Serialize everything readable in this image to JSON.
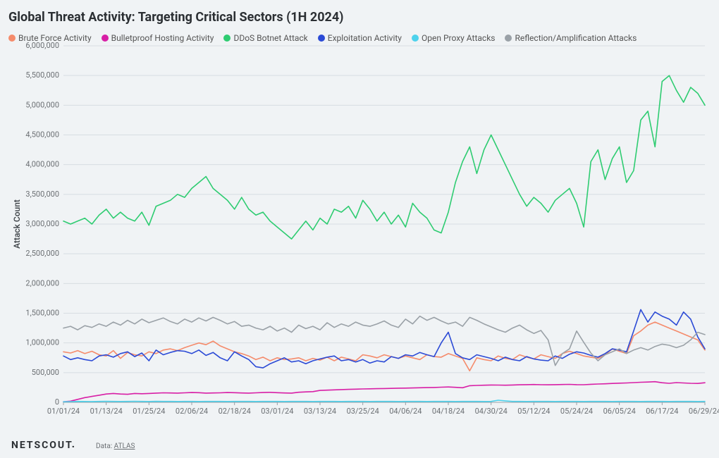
{
  "title": "Global Threat Activity: Targeting Critical Sectors (1H 2024)",
  "axis": {
    "ylabel": "Attack Count",
    "ylim": [
      0,
      6000000
    ],
    "ytick_step": 500000,
    "ytick_labels": [
      "0",
      "500,000",
      "1,000,000",
      "1,500,000",
      "2,000,000",
      "2,500,000",
      "3,000,000",
      "3,500,000",
      "4,000,000",
      "4,500,000",
      "5,000,000",
      "5,500,000",
      "6,000,000"
    ],
    "xtick_labels": [
      "01/01/24",
      "01/13/24",
      "01/25/24",
      "02/06/24",
      "02/18/24",
      "03/01/24",
      "03/13/24",
      "03/25/24",
      "04/06/24",
      "04/18/24",
      "04/30/24",
      "05/12/24",
      "05/24/24",
      "06/05/24",
      "06/17/24",
      "06/29/24"
    ],
    "x_count": 91
  },
  "style": {
    "background_color": "#f0f3f5",
    "grid_color": "#d7dde2",
    "axis_color": "#9aa1a7",
    "tick_color": "#6b6f73",
    "line_width": 1.6,
    "title_fontsize": 18,
    "label_fontsize": 12,
    "tick_fontsize": 11
  },
  "series": [
    {
      "name": "Brute Force Activity",
      "color": "#f58b6b",
      "values": [
        850000,
        830000,
        870000,
        820000,
        860000,
        800000,
        780000,
        870000,
        740000,
        840000,
        800000,
        780000,
        850000,
        820000,
        880000,
        900000,
        870000,
        920000,
        960000,
        1000000,
        970000,
        1030000,
        950000,
        900000,
        850000,
        820000,
        780000,
        720000,
        760000,
        700000,
        750000,
        720000,
        730000,
        750000,
        700000,
        740000,
        710000,
        760000,
        700000,
        760000,
        730000,
        700000,
        800000,
        780000,
        750000,
        800000,
        770000,
        740000,
        780000,
        750000,
        720000,
        800000,
        770000,
        760000,
        820000,
        780000,
        740000,
        530000,
        750000,
        720000,
        700000,
        780000,
        740000,
        720000,
        800000,
        760000,
        730000,
        800000,
        770000,
        740000,
        820000,
        860000,
        820000,
        780000,
        760000,
        740000,
        800000,
        900000,
        860000,
        820000,
        1120000,
        1200000,
        1300000,
        1350000,
        1300000,
        1250000,
        1200000,
        1150000,
        1100000,
        1050000,
        880000
      ]
    },
    {
      "name": "Bulletproof Hosting Activity",
      "color": "#d81fa6",
      "values": [
        10000,
        20000,
        50000,
        80000,
        100000,
        120000,
        140000,
        150000,
        140000,
        135000,
        150000,
        145000,
        150000,
        155000,
        160000,
        158000,
        155000,
        160000,
        165000,
        162000,
        155000,
        158000,
        160000,
        165000,
        162000,
        158000,
        155000,
        160000,
        165000,
        168000,
        162000,
        158000,
        155000,
        170000,
        175000,
        180000,
        200000,
        205000,
        210000,
        215000,
        218000,
        222000,
        225000,
        228000,
        230000,
        232000,
        235000,
        238000,
        240000,
        242000,
        246000,
        248000,
        250000,
        255000,
        258000,
        252000,
        246000,
        280000,
        285000,
        288000,
        292000,
        290000,
        288000,
        292000,
        295000,
        298000,
        300000,
        296000,
        295000,
        298000,
        300000,
        302000,
        298000,
        296000,
        304000,
        308000,
        312000,
        318000,
        322000,
        326000,
        332000,
        338000,
        342000,
        348000,
        330000,
        320000,
        332000,
        326000,
        320000,
        318000,
        330000
      ]
    },
    {
      "name": "DDoS Botnet Attack",
      "color": "#2ecc71",
      "values": [
        3050000,
        3000000,
        3050000,
        3100000,
        3000000,
        3150000,
        3250000,
        3100000,
        3200000,
        3100000,
        3050000,
        3200000,
        2980000,
        3300000,
        3350000,
        3400000,
        3500000,
        3450000,
        3600000,
        3700000,
        3800000,
        3600000,
        3500000,
        3400000,
        3250000,
        3450000,
        3250000,
        3150000,
        3200000,
        3050000,
        2950000,
        2850000,
        2750000,
        2900000,
        3050000,
        2900000,
        3100000,
        3000000,
        3250000,
        3200000,
        3300000,
        3100000,
        3400000,
        3250000,
        3050000,
        3200000,
        3000000,
        3150000,
        2950000,
        3350000,
        3200000,
        3100000,
        2900000,
        2850000,
        3200000,
        3700000,
        4050000,
        4300000,
        3850000,
        4250000,
        4500000,
        4250000,
        4000000,
        3750000,
        3500000,
        3300000,
        3450000,
        3350000,
        3200000,
        3400000,
        3500000,
        3600000,
        3350000,
        2950000,
        4050000,
        4250000,
        3750000,
        4100000,
        4300000,
        3700000,
        3900000,
        4750000,
        4900000,
        4300000,
        5400000,
        5500000,
        5250000,
        5050000,
        5300000,
        5200000,
        5000000
      ]
    },
    {
      "name": "Exploitation Activity",
      "color": "#2b4ad6",
      "values": [
        780000,
        720000,
        750000,
        720000,
        700000,
        780000,
        800000,
        760000,
        820000,
        850000,
        770000,
        830000,
        700000,
        880000,
        800000,
        840000,
        870000,
        860000,
        820000,
        880000,
        790000,
        840000,
        750000,
        700000,
        850000,
        780000,
        720000,
        600000,
        580000,
        650000,
        700000,
        750000,
        680000,
        700000,
        650000,
        700000,
        730000,
        760000,
        780000,
        700000,
        720000,
        680000,
        720000,
        660000,
        700000,
        680000,
        770000,
        740000,
        800000,
        780000,
        840000,
        800000,
        770000,
        1000000,
        1180000,
        820000,
        750000,
        720000,
        800000,
        770000,
        740000,
        700000,
        760000,
        720000,
        700000,
        770000,
        730000,
        710000,
        700000,
        780000,
        740000,
        810000,
        850000,
        830000,
        790000,
        760000,
        820000,
        900000,
        880000,
        850000,
        1200000,
        1560000,
        1350000,
        1520000,
        1450000,
        1400000,
        1300000,
        1520000,
        1400000,
        1100000,
        900000
      ]
    },
    {
      "name": "Open Proxy Attacks",
      "color": "#4dd2ec",
      "values": [
        10000,
        12000,
        15000,
        14000,
        13000,
        16000,
        17000,
        15000,
        14000,
        16000,
        18000,
        15000,
        14000,
        17000,
        16000,
        15000,
        14000,
        15000,
        16000,
        14000,
        15000,
        16000,
        15000,
        14000,
        15000,
        16000,
        15000,
        14000,
        15000,
        16000,
        15000,
        14000,
        15000,
        16000,
        15000,
        14000,
        15000,
        16000,
        15000,
        14000,
        15000,
        16000,
        15000,
        14000,
        15000,
        16000,
        15000,
        14000,
        15000,
        16000,
        15000,
        14000,
        15000,
        16000,
        15000,
        14000,
        15000,
        16000,
        15000,
        14000,
        15000,
        35000,
        25000,
        16000,
        15000,
        14000,
        15000,
        16000,
        15000,
        14000,
        15000,
        16000,
        15000,
        14000,
        15000,
        16000,
        15000,
        14000,
        15000,
        16000,
        15000,
        14000,
        15000,
        16000,
        15000,
        14000,
        15000,
        16000,
        15000,
        14000,
        15000
      ]
    },
    {
      "name": "Reflection/Amplification Attacks",
      "color": "#9aa1a7",
      "values": [
        1250000,
        1280000,
        1220000,
        1290000,
        1260000,
        1320000,
        1280000,
        1350000,
        1300000,
        1380000,
        1320000,
        1400000,
        1340000,
        1380000,
        1420000,
        1360000,
        1320000,
        1400000,
        1350000,
        1420000,
        1370000,
        1430000,
        1380000,
        1320000,
        1360000,
        1280000,
        1300000,
        1250000,
        1220000,
        1280000,
        1200000,
        1250000,
        1180000,
        1300000,
        1240000,
        1280000,
        1220000,
        1340000,
        1260000,
        1320000,
        1280000,
        1350000,
        1300000,
        1280000,
        1320000,
        1370000,
        1300000,
        1260000,
        1400000,
        1320000,
        1450000,
        1380000,
        1430000,
        1370000,
        1320000,
        1350000,
        1280000,
        1430000,
        1380000,
        1320000,
        1270000,
        1220000,
        1180000,
        1250000,
        1300000,
        1220000,
        1160000,
        1210000,
        1050000,
        620000,
        820000,
        900000,
        1200000,
        1010000,
        830000,
        700000,
        800000,
        850000,
        900000,
        820000,
        880000,
        920000,
        880000,
        940000,
        980000,
        960000,
        920000,
        960000,
        1050000,
        1180000,
        1140000
      ]
    }
  ],
  "footer": {
    "brand": "NETSCOUT",
    "data_label": "Data:",
    "data_value": "ATLAS"
  }
}
